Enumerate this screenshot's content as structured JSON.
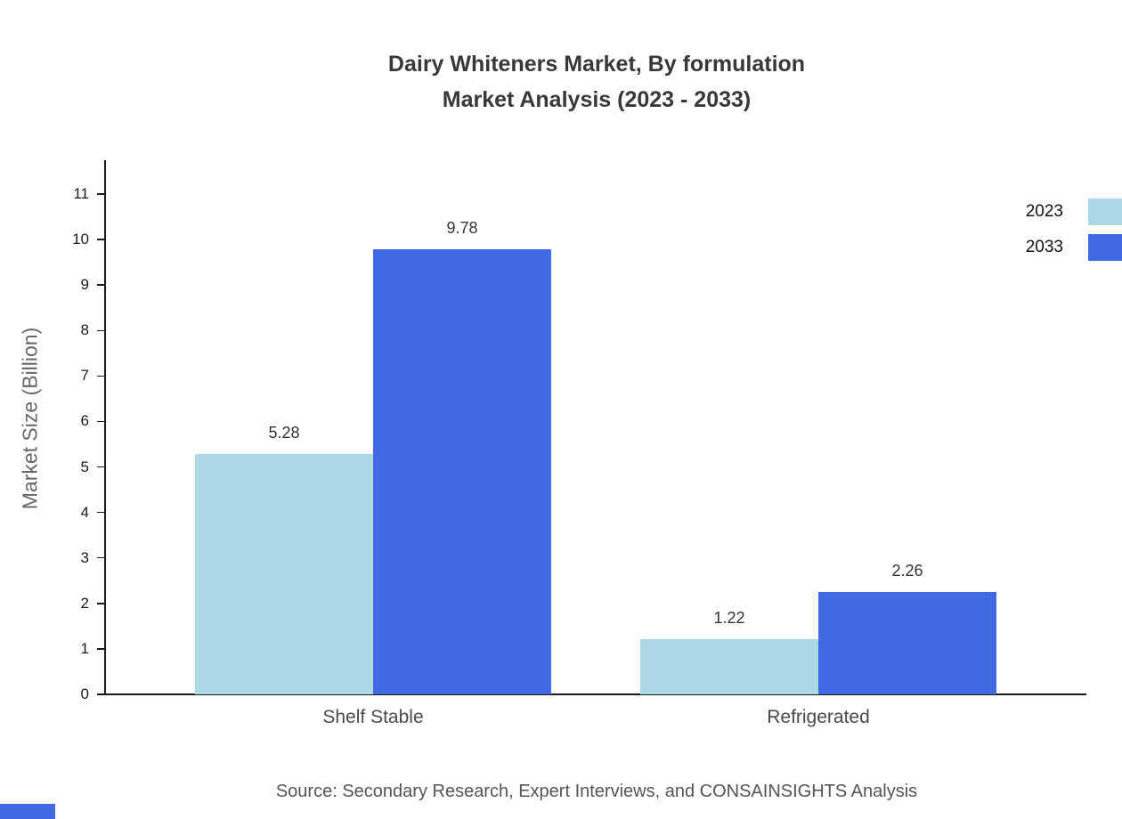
{
  "chart_data": {
    "type": "bar",
    "title": "Dairy Whiteners Market, By formulation\nMarket Analysis (2023 - 2033)",
    "categories": [
      "Shelf Stable",
      "Refrigerated"
    ],
    "series": [
      {
        "name": "2023",
        "color": "#add8e6",
        "values": [
          5.28,
          1.22
        ]
      },
      {
        "name": "2033",
        "color": "#4169e1",
        "values": [
          9.78,
          2.26
        ]
      }
    ],
    "xlabel": "",
    "ylabel": "Market Size (Billion)",
    "ylim": [
      0,
      11
    ],
    "ytick_step": 1,
    "grid": false,
    "legend_position": "top-right",
    "value_labels": [
      "5.28",
      "9.78",
      "1.22",
      "2.26"
    ]
  },
  "footer": {
    "source": "Source: Secondary Research, Expert Interviews, and CONSAINSIGHTS Analysis"
  },
  "colors": {
    "accent_corner": "#4169e1",
    "axis": "#1a1a1a"
  }
}
